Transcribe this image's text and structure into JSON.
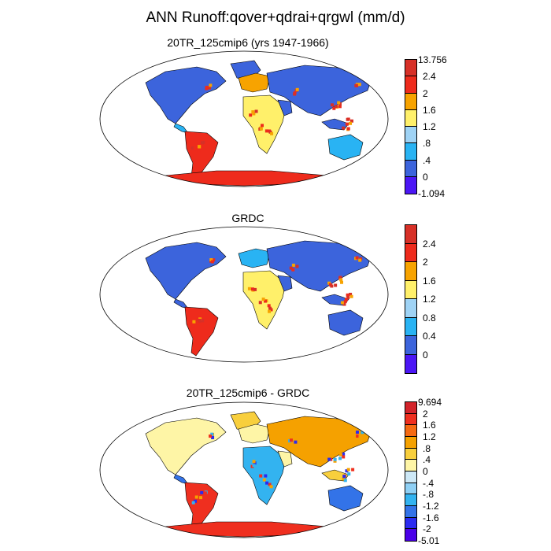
{
  "main_title": "ANN Runoff:qover+qdrai+qrgwl (mm/d)",
  "panels": [
    {
      "title": "20TR_125cmip6 (yrs 1947-1966)",
      "colorbar": {
        "colors": [
          "#d73027",
          "#ee2b1c",
          "#f7a300",
          "#fff06a",
          "#9fd3f5",
          "#29b3f3",
          "#3c64dc",
          "#4b16f5"
        ],
        "labels": [
          "13.756",
          "2.4",
          "2",
          "1.6",
          "1.2",
          ".8",
          ".4",
          "0",
          "-1.094"
        ]
      }
    },
    {
      "title": "GRDC",
      "colorbar": {
        "colors": [
          "#d73027",
          "#ee2b1c",
          "#f7a300",
          "#fff06a",
          "#9fd3f5",
          "#29b3f3",
          "#3c64dc",
          "#4b16f5"
        ],
        "labels": [
          "2.4",
          "2",
          "1.6",
          "1.2",
          "0.8",
          "0.4",
          "0"
        ]
      }
    },
    {
      "title": "20TR_125cmip6 - GRDC",
      "colorbar": {
        "colors": [
          "#d2232a",
          "#ef2f1f",
          "#f56a12",
          "#f5a100",
          "#f8cf3d",
          "#fef5a6",
          "#cde8f6",
          "#8fd0f5",
          "#33b3f0",
          "#3373e8",
          "#2b2bf0",
          "#4a00e8"
        ],
        "labels": [
          "9.694",
          "2",
          "1.6",
          "1.2",
          ".8",
          ".4",
          "0",
          "-.4",
          "-.8",
          "-1.2",
          "-1.6",
          "-2",
          "-5.01"
        ]
      }
    }
  ]
}
